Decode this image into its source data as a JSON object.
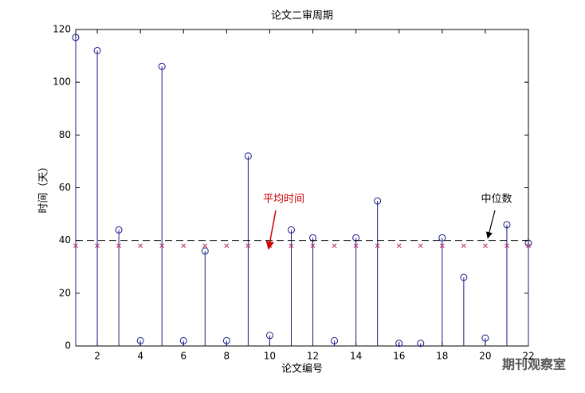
{
  "chart_data": {
    "type": "stem",
    "title": "论文二审周期",
    "x_label": "论文编号",
    "y_label": "时间（天）",
    "x": [
      1,
      2,
      3,
      4,
      5,
      6,
      7,
      8,
      9,
      10,
      11,
      12,
      13,
      14,
      15,
      16,
      17,
      18,
      19,
      20,
      21,
      22
    ],
    "values": [
      117,
      112,
      44,
      2,
      106,
      2,
      36,
      2,
      72,
      4,
      44,
      41,
      2,
      41,
      55,
      1,
      1,
      41,
      26,
      3,
      46,
      39
    ],
    "color": "#1a1a8c",
    "mean": 38,
    "mean_label": "平均时间",
    "mean_color": "#c0306a",
    "median": 40,
    "median_label": "中位数",
    "xlim": [
      1,
      22
    ],
    "xticks": [
      2,
      4,
      6,
      8,
      10,
      12,
      14,
      16,
      18,
      20,
      22
    ],
    "ylim": [
      0,
      120
    ],
    "yticks": [
      0,
      20,
      40,
      60,
      80,
      100,
      120
    ],
    "watermark": "期刊观察室"
  }
}
